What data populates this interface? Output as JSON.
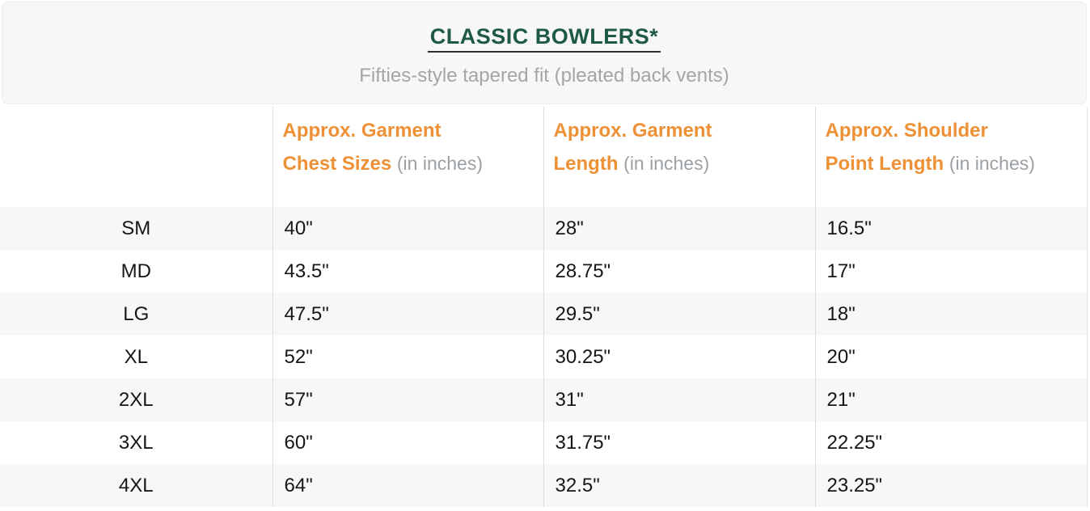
{
  "header": {
    "title": "CLASSIC BOWLERS*",
    "subtitle": "Fifties-style tapered fit (pleated back vents)"
  },
  "table": {
    "columns": [
      {
        "label": "",
        "unit": ""
      },
      {
        "label": "Approx. Garment\nChest Sizes",
        "unit": "(in inches)"
      },
      {
        "label": "Approx. Garment\nLength",
        "unit": "(in inches)"
      },
      {
        "label": "Approx. Shoulder\nPoint Length",
        "unit": "(in inches)"
      }
    ],
    "rows": [
      {
        "size": "SM",
        "chest": "40\"",
        "length": "28\"",
        "shoulder": "16.5\""
      },
      {
        "size": "MD",
        "chest": "43.5\"",
        "length": "28.75\"",
        "shoulder": "17\""
      },
      {
        "size": "LG",
        "chest": "47.5\"",
        "length": "29.5\"",
        "shoulder": "18\""
      },
      {
        "size": "XL",
        "chest": "52\"",
        "length": "30.25\"",
        "shoulder": "20\""
      },
      {
        "size": "2XL",
        "chest": "57\"",
        "length": "31\"",
        "shoulder": "21\""
      },
      {
        "size": "3XL",
        "chest": "60\"",
        "length": "31.75\"",
        "shoulder": "22.25\""
      },
      {
        "size": "4XL",
        "chest": "64\"",
        "length": "32.5\"",
        "shoulder": "23.25\""
      }
    ]
  },
  "colors": {
    "title_green": "#1e5846",
    "header_orange": "#ee9035",
    "subtitle_gray": "#a5a5a5",
    "unit_gray": "#9aa0a5",
    "stripe_gray": "#f7f7f7",
    "divider_gray": "#dddddd"
  }
}
